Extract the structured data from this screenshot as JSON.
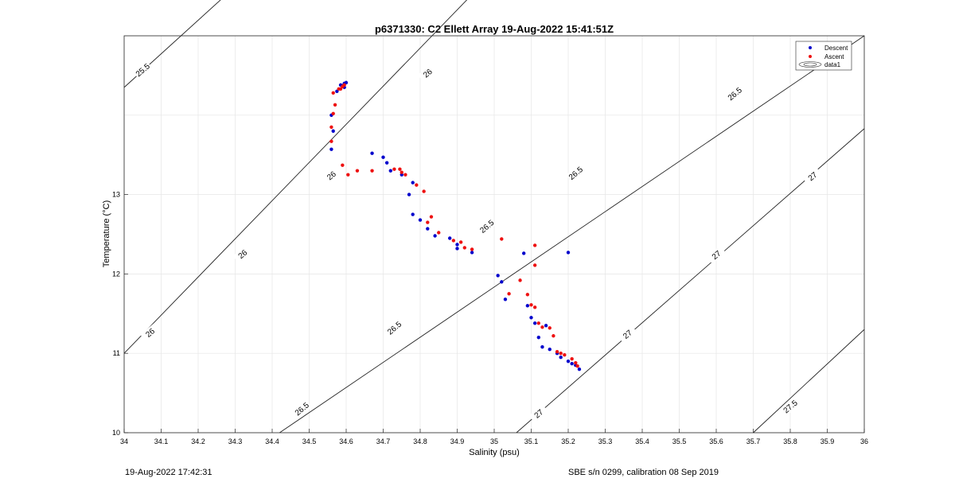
{
  "chart_data": {
    "type": "scatter",
    "title": "p6371330: C2 Ellett Array 19-Aug-2022 15:41:51Z",
    "xlabel": "Salinity (psu)",
    "ylabel": "Temperature (°C)",
    "xlim": [
      34,
      36
    ],
    "ylim": [
      10,
      15
    ],
    "xticks": [
      "34",
      "34.1",
      "34.2",
      "34.3",
      "34.4",
      "34.5",
      "34.6",
      "34.7",
      "34.8",
      "34.9",
      "35",
      "35.1",
      "35.2",
      "35.3",
      "35.4",
      "35.5",
      "35.6",
      "35.7",
      "35.8",
      "35.9",
      "36"
    ],
    "yticks": [
      "10",
      "11",
      "12",
      "13"
    ],
    "grid": true,
    "legend_position": "top-right",
    "legend": [
      "Descent",
      "Ascent",
      "data1"
    ],
    "series": [
      {
        "name": "Descent",
        "color": "#0000cc",
        "points": [
          [
            34.56,
            13.57
          ],
          [
            34.565,
            13.8
          ],
          [
            34.56,
            14.0
          ],
          [
            34.575,
            14.3
          ],
          [
            34.585,
            14.38
          ],
          [
            34.59,
            14.37
          ],
          [
            34.595,
            14.4
          ],
          [
            34.6,
            14.41
          ],
          [
            34.595,
            14.35
          ],
          [
            34.67,
            13.52
          ],
          [
            34.7,
            13.47
          ],
          [
            34.71,
            13.4
          ],
          [
            34.72,
            13.3
          ],
          [
            34.75,
            13.25
          ],
          [
            34.77,
            13.0
          ],
          [
            34.78,
            13.15
          ],
          [
            34.78,
            12.75
          ],
          [
            34.8,
            12.68
          ],
          [
            34.82,
            12.57
          ],
          [
            34.84,
            12.48
          ],
          [
            34.88,
            12.45
          ],
          [
            34.9,
            12.37
          ],
          [
            34.9,
            12.32
          ],
          [
            34.94,
            12.27
          ],
          [
            35.01,
            11.98
          ],
          [
            35.02,
            11.9
          ],
          [
            35.03,
            11.68
          ],
          [
            35.08,
            12.26
          ],
          [
            35.09,
            11.6
          ],
          [
            35.1,
            11.45
          ],
          [
            35.11,
            11.38
          ],
          [
            35.12,
            11.2
          ],
          [
            35.14,
            11.35
          ],
          [
            35.13,
            11.08
          ],
          [
            35.15,
            11.05
          ],
          [
            35.17,
            11.0
          ],
          [
            35.18,
            10.95
          ],
          [
            35.2,
            12.27
          ],
          [
            35.2,
            10.9
          ],
          [
            35.21,
            10.87
          ],
          [
            35.22,
            10.85
          ],
          [
            35.23,
            10.8
          ]
        ]
      },
      {
        "name": "Ascent",
        "color": "#ee1111",
        "points": [
          [
            34.56,
            13.67
          ],
          [
            34.56,
            13.85
          ],
          [
            34.565,
            14.02
          ],
          [
            34.57,
            14.13
          ],
          [
            34.565,
            14.28
          ],
          [
            34.58,
            14.33
          ],
          [
            34.59,
            14.36
          ],
          [
            34.595,
            14.38
          ],
          [
            34.585,
            14.33
          ],
          [
            34.59,
            13.37
          ],
          [
            34.605,
            13.25
          ],
          [
            34.63,
            13.3
          ],
          [
            34.67,
            13.3
          ],
          [
            34.73,
            13.32
          ],
          [
            34.745,
            13.32
          ],
          [
            34.75,
            13.28
          ],
          [
            34.76,
            13.25
          ],
          [
            34.79,
            13.12
          ],
          [
            34.81,
            13.04
          ],
          [
            34.82,
            12.65
          ],
          [
            34.83,
            12.72
          ],
          [
            34.85,
            12.52
          ],
          [
            34.89,
            12.42
          ],
          [
            34.91,
            12.4
          ],
          [
            34.92,
            12.33
          ],
          [
            34.94,
            12.31
          ],
          [
            35.02,
            12.44
          ],
          [
            35.04,
            11.75
          ],
          [
            35.07,
            11.92
          ],
          [
            35.09,
            11.74
          ],
          [
            35.1,
            11.61
          ],
          [
            35.11,
            12.36
          ],
          [
            35.11,
            12.11
          ],
          [
            35.11,
            11.58
          ],
          [
            35.12,
            11.38
          ],
          [
            35.13,
            11.33
          ],
          [
            35.15,
            11.32
          ],
          [
            35.16,
            11.22
          ],
          [
            35.17,
            11.02
          ],
          [
            35.18,
            11.0
          ],
          [
            35.19,
            10.98
          ],
          [
            35.21,
            10.93
          ],
          [
            35.22,
            10.88
          ],
          [
            35.225,
            10.84
          ]
        ]
      }
    ],
    "isopycnals": [
      {
        "label": "25.5",
        "s0": 34.0,
        "t0": 14.35,
        "s1": 34.39,
        "t1": 16.0
      },
      {
        "label": "26",
        "s0": 34.0,
        "t0": 11.0,
        "s1": 35.04,
        "t1": 16.0
      },
      {
        "label": "26.5",
        "s0": 34.42,
        "t0": 10.0,
        "s1": 36.0,
        "t1": 15.0
      },
      {
        "label": "27",
        "s0": 35.06,
        "t0": 10.0,
        "s1": 36.0,
        "t1": 13.83
      },
      {
        "label": "27.5",
        "s0": 35.7,
        "t0": 10.0,
        "s1": 36.0,
        "t1": 11.3
      }
    ],
    "contour_label_positions": [
      {
        "label": "25.5",
        "s": 34.3,
        "t": 15.85
      },
      {
        "label": "25.5",
        "s": 34.05,
        "t": 14.57
      },
      {
        "label": "26",
        "s": 34.82,
        "t": 14.53
      },
      {
        "label": "26",
        "s": 34.56,
        "t": 13.24
      },
      {
        "label": "26",
        "s": 34.32,
        "t": 12.25
      },
      {
        "label": "26",
        "s": 34.07,
        "t": 11.26
      },
      {
        "label": "26.5",
        "s": 35.65,
        "t": 14.27
      },
      {
        "label": "26.5",
        "s": 35.22,
        "t": 13.27
      },
      {
        "label": "26.5",
        "s": 34.98,
        "t": 12.6
      },
      {
        "label": "26.5",
        "s": 34.73,
        "t": 11.32
      },
      {
        "label": "26.5",
        "s": 34.48,
        "t": 10.3
      },
      {
        "label": "27",
        "s": 35.86,
        "t": 13.23
      },
      {
        "label": "27",
        "s": 35.6,
        "t": 12.24
      },
      {
        "label": "27",
        "s": 35.36,
        "t": 11.24
      },
      {
        "label": "27",
        "s": 35.12,
        "t": 10.24
      },
      {
        "label": "27.5",
        "s": 35.8,
        "t": 10.33
      }
    ]
  },
  "footer": {
    "left": "19-Aug-2022 17:42:31",
    "right": "SBE s/n 0299, calibration 08 Sep 2019"
  }
}
